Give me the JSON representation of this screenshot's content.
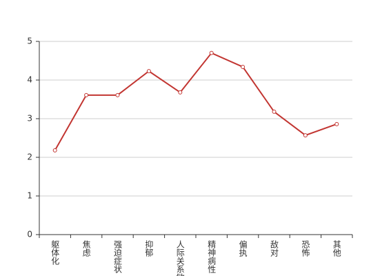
{
  "chart_data": {
    "type": "line",
    "categories": [
      "躯体化",
      "焦虑",
      "强迫症状",
      "抑郁",
      "人际关系敏感",
      "精神病性",
      "偏执",
      "敌对",
      "恐怖",
      "其他"
    ],
    "values": [
      2.18,
      3.61,
      3.61,
      4.23,
      3.68,
      4.7,
      4.34,
      3.18,
      2.57,
      2.86
    ],
    "color": "#c23531",
    "ylim": [
      0,
      5
    ],
    "yticks": [
      0,
      1,
      2,
      3,
      4,
      5
    ],
    "grid": true
  }
}
